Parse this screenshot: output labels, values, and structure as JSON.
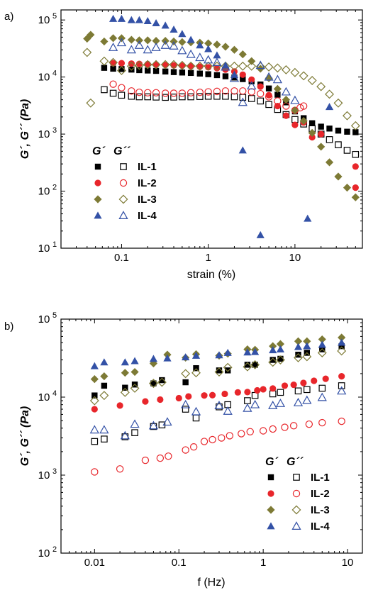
{
  "colors": {
    "IL-1": "#000000",
    "IL-2": "#e8262b",
    "IL-3": "#7d7a35",
    "IL-4": "#3351a6"
  },
  "markers": {
    "IL-1": "square",
    "IL-2": "circle",
    "IL-3": "diamond",
    "IL-4": "triangle"
  },
  "chart_data": [
    {
      "type": "scatter",
      "panel_label": "a)",
      "xlabel": "strain (%)",
      "ylabel": "G´, G´´ (Pa)",
      "xscale": "log",
      "yscale": "log",
      "xlim": [
        0.02,
        60
      ],
      "ylim": [
        10,
        150000
      ],
      "xticks": [
        {
          "v": 0.1,
          "label": "0.1"
        },
        {
          "v": 1,
          "label": "1"
        },
        {
          "v": 10,
          "label": "10"
        }
      ],
      "yticks": [
        {
          "v": 10,
          "label": "10",
          "exp": "1"
        },
        {
          "v": 100,
          "label": "10",
          "exp": "2"
        },
        {
          "v": 1000,
          "label": "10",
          "exp": "3"
        },
        {
          "v": 10000,
          "label": "10",
          "exp": "4"
        },
        {
          "v": 100000,
          "label": "10",
          "exp": "5"
        }
      ],
      "legend": {
        "position": "bottom-left",
        "header_storage": "G´",
        "header_loss": "G´´",
        "entries": [
          "IL-1",
          "IL-2",
          "IL-3",
          "IL-4"
        ]
      },
      "series": [
        {
          "name": "IL-1",
          "kind": "G´",
          "x": [
            0.063,
            0.08,
            0.1,
            0.13,
            0.16,
            0.2,
            0.25,
            0.32,
            0.4,
            0.5,
            0.63,
            0.8,
            1.0,
            1.26,
            1.58,
            2.0,
            2.5,
            3.16,
            4.0,
            5.0,
            6.3,
            7.9,
            10,
            12.6,
            15.8,
            20,
            25,
            31.6,
            40,
            50
          ],
          "y": [
            14500,
            14000,
            13800,
            13500,
            13200,
            13000,
            12800,
            12500,
            12200,
            12000,
            11800,
            11500,
            11200,
            10800,
            10300,
            9800,
            9200,
            8400,
            7400,
            6300,
            4900,
            3600,
            2500,
            1900,
            1550,
            1350,
            1250,
            1150,
            1100,
            1080
          ]
        },
        {
          "name": "IL-1",
          "kind": "G´´",
          "x": [
            0.063,
            0.08,
            0.1,
            0.13,
            0.16,
            0.2,
            0.25,
            0.32,
            0.4,
            0.5,
            0.63,
            0.8,
            1.0,
            1.26,
            1.58,
            2.0,
            2.5,
            3.16,
            4.0,
            5.0,
            6.3,
            7.9,
            10,
            12.6,
            15.8,
            20,
            25,
            31.6,
            40,
            50
          ],
          "y": [
            6000,
            5200,
            4800,
            4600,
            4500,
            4500,
            4450,
            4400,
            4450,
            4500,
            4500,
            4550,
            4600,
            4600,
            4600,
            4500,
            4400,
            4200,
            3800,
            3300,
            2700,
            2200,
            1800,
            1500,
            1250,
            1000,
            800,
            650,
            520,
            440
          ]
        },
        {
          "name": "IL-2",
          "kind": "G´",
          "x": [
            0.08,
            0.1,
            0.13,
            0.16,
            0.2,
            0.25,
            0.32,
            0.4,
            0.5,
            0.63,
            0.8,
            1.0,
            1.26,
            1.58,
            2.0,
            2.5,
            3.16,
            4.0,
            5.0,
            6.3,
            7.9,
            10,
            12.6,
            15.8,
            20,
            50,
            50
          ],
          "y": [
            17500,
            17500,
            17200,
            17000,
            16800,
            16500,
            16300,
            16000,
            15800,
            15500,
            15200,
            14800,
            14300,
            13500,
            12500,
            11000,
            9000,
            6800,
            4800,
            3100,
            2100,
            1450,
            1600,
            880,
            1000,
            270,
            115
          ]
        },
        {
          "name": "IL-2",
          "kind": "G´´",
          "x": [
            0.08,
            0.1,
            0.13,
            0.16,
            0.2,
            0.25,
            0.32,
            0.4,
            0.5,
            0.63,
            0.8,
            1.0,
            1.26,
            1.58,
            2.0,
            2.5,
            3.16,
            4.0,
            5.0,
            6.3,
            7.9,
            10,
            11.5,
            12.6
          ],
          "y": [
            7500,
            6500,
            5700,
            5400,
            5300,
            5300,
            5200,
            5200,
            5200,
            5300,
            5400,
            5500,
            5600,
            5700,
            5700,
            5700,
            5500,
            5100,
            4500,
            3800,
            3100,
            2600,
            2900,
            3100
          ]
        },
        {
          "name": "IL-3",
          "kind": "G´",
          "x": [
            0.04,
            0.044,
            0.063,
            0.08,
            0.1,
            0.13,
            0.16,
            0.2,
            0.25,
            0.32,
            0.4,
            0.5,
            0.63,
            0.8,
            1.0,
            1.26,
            1.58,
            2.0,
            2.5,
            3.16,
            4.0,
            5.0,
            6.3,
            7.9,
            10,
            12.6,
            15.8,
            20,
            25,
            31.6,
            40,
            50
          ],
          "y": [
            47000,
            55000,
            42000,
            48000,
            48000,
            45000,
            44000,
            44000,
            43000,
            43000,
            42000,
            41000,
            40500,
            40000,
            39000,
            37000,
            34000,
            30000,
            25000,
            19000,
            14000,
            9500,
            6200,
            4000,
            2600,
            1700,
            1050,
            600,
            320,
            180,
            115,
            78
          ]
        },
        {
          "name": "IL-3",
          "kind": "G´´",
          "x": [
            0.04,
            0.044,
            0.063,
            0.08,
            0.1,
            0.13,
            0.16,
            0.2,
            0.25,
            0.32,
            0.4,
            0.5,
            0.63,
            0.8,
            1.0,
            1.26,
            1.58,
            2.0,
            2.5,
            3.16,
            4.0,
            5.0,
            6.3,
            7.9,
            10,
            12.6,
            15.8,
            20,
            25,
            31.6,
            40,
            50
          ],
          "y": [
            27000,
            3500,
            19000,
            18000,
            13000,
            15500,
            16000,
            16500,
            16500,
            16500,
            16500,
            16000,
            15500,
            15500,
            15500,
            15500,
            15500,
            15500,
            15500,
            15500,
            15300,
            15000,
            14400,
            13400,
            12000,
            10500,
            8700,
            6800,
            5000,
            3500,
            2100,
            1400
          ]
        },
        {
          "name": "IL-4",
          "kind": "G´",
          "x": [
            0.08,
            0.1,
            0.13,
            0.16,
            0.2,
            0.25,
            0.32,
            0.4,
            0.5,
            0.63,
            0.8,
            1.0,
            1.26,
            1.58,
            2.0,
            2.5,
            4.0,
            14,
            25
          ],
          "y": [
            105000,
            105000,
            100000,
            100000,
            96000,
            88000,
            80000,
            68000,
            57000,
            45000,
            36000,
            31000,
            24000,
            16000,
            11000,
            520,
            17,
            33,
            3000
          ]
        },
        {
          "name": "IL-4",
          "kind": "G´´",
          "x": [
            0.08,
            0.1,
            0.13,
            0.16,
            0.2,
            0.25,
            0.32,
            0.4,
            0.5,
            0.63,
            0.8,
            1.0,
            1.26,
            1.58,
            2.0,
            2.5,
            3.16,
            4.0,
            5.0,
            6.3,
            7.9,
            10
          ],
          "y": [
            33000,
            40000,
            30000,
            36000,
            30000,
            33000,
            36000,
            35000,
            29000,
            25000,
            22000,
            20000,
            18000,
            15000,
            9500,
            3600,
            7000,
            16000,
            10000,
            9000,
            5500,
            3900
          ]
        }
      ]
    },
    {
      "type": "scatter",
      "panel_label": "b)",
      "xlabel": "f (Hz)",
      "ylabel": "G´, G´´ (Pa)",
      "xscale": "log",
      "yscale": "log",
      "xlim": [
        0.004,
        15
      ],
      "ylim": [
        100,
        100000
      ],
      "xticks": [
        {
          "v": 0.01,
          "label": "0.01"
        },
        {
          "v": 0.1,
          "label": "0.1"
        },
        {
          "v": 1,
          "label": "1"
        },
        {
          "v": 10,
          "label": "10"
        }
      ],
      "yticks": [
        {
          "v": 100,
          "label": "10",
          "exp": "2"
        },
        {
          "v": 1000,
          "label": "10",
          "exp": "3"
        },
        {
          "v": 10000,
          "label": "10",
          "exp": "4"
        },
        {
          "v": 100000,
          "label": "10",
          "exp": "5"
        }
      ],
      "legend": {
        "position": "bottom-right",
        "header_storage": "G´",
        "header_loss": "G´´",
        "entries": [
          "IL-1",
          "IL-2",
          "IL-3",
          "IL-4"
        ]
      },
      "series": [
        {
          "name": "IL-1",
          "kind": "G´",
          "x": [
            0.01,
            0.013,
            0.023,
            0.03,
            0.05,
            0.063,
            0.12,
            0.16,
            0.3,
            0.38,
            0.65,
            0.8,
            1.3,
            1.6,
            2.6,
            3.3,
            5,
            8.5
          ],
          "y": [
            10500,
            14000,
            13200,
            14500,
            15000,
            16500,
            15500,
            23500,
            22000,
            22000,
            26000,
            26000,
            30000,
            31000,
            35000,
            37000,
            41000,
            45000
          ]
        },
        {
          "name": "IL-1",
          "kind": "G´´",
          "x": [
            0.01,
            0.013,
            0.023,
            0.03,
            0.05,
            0.063,
            0.12,
            0.16,
            0.3,
            0.38,
            0.65,
            0.8,
            1.3,
            1.6,
            2.6,
            3.3,
            5,
            8.5
          ],
          "y": [
            2700,
            2900,
            3100,
            3500,
            4200,
            4400,
            7000,
            5400,
            7500,
            8000,
            9000,
            10500,
            11000,
            11500,
            12000,
            12500,
            13000,
            14000
          ]
        },
        {
          "name": "IL-2",
          "kind": "G´",
          "x": [
            0.01,
            0.02,
            0.04,
            0.06,
            0.1,
            0.13,
            0.2,
            0.25,
            0.35,
            0.5,
            0.65,
            0.85,
            1.0,
            1.3,
            1.8,
            2.3,
            3.0,
            4.0,
            5.5,
            8.5
          ],
          "y": [
            7000,
            7800,
            8800,
            9300,
            9700,
            10200,
            10500,
            10600,
            11000,
            11500,
            11600,
            12200,
            12600,
            12900,
            14000,
            14400,
            15200,
            16200,
            17200,
            18500
          ]
        },
        {
          "name": "IL-2",
          "kind": "G´´",
          "x": [
            0.01,
            0.02,
            0.04,
            0.06,
            0.075,
            0.12,
            0.15,
            0.2,
            0.25,
            0.32,
            0.4,
            0.55,
            0.7,
            1.0,
            1.3,
            1.8,
            2.3,
            3.5,
            5,
            8.5
          ],
          "y": [
            1100,
            1200,
            1550,
            1650,
            1750,
            2100,
            2300,
            2700,
            2850,
            3000,
            3200,
            3400,
            3600,
            3700,
            3900,
            4100,
            4300,
            4500,
            4700,
            4900
          ]
        },
        {
          "name": "IL-3",
          "kind": "G´",
          "x": [
            0.01,
            0.013,
            0.023,
            0.03,
            0.05,
            0.073,
            0.12,
            0.16,
            0.3,
            0.38,
            0.65,
            0.8,
            1.3,
            1.6,
            2.6,
            3.3,
            5,
            8.5
          ],
          "y": [
            17000,
            18500,
            20500,
            21000,
            27000,
            35000,
            32000,
            35500,
            34000,
            36000,
            41000,
            40500,
            45000,
            48000,
            52000,
            52000,
            55000,
            58000
          ]
        },
        {
          "name": "IL-3",
          "kind": "G´´",
          "x": [
            0.01,
            0.013,
            0.023,
            0.03,
            0.05,
            0.063,
            0.12,
            0.16,
            0.3,
            0.38,
            0.65,
            0.8,
            1.3,
            1.6,
            2.6,
            3.3,
            5,
            8.5
          ],
          "y": [
            9000,
            10500,
            11500,
            13000,
            15000,
            15500,
            20000,
            20500,
            21000,
            24000,
            24500,
            26000,
            28000,
            30000,
            32000,
            33000,
            37000,
            39000
          ]
        },
        {
          "name": "IL-4",
          "kind": "G´",
          "x": [
            0.01,
            0.013,
            0.023,
            0.03,
            0.05,
            0.073,
            0.12,
            0.16,
            0.3,
            0.38,
            0.65,
            0.8,
            1.3,
            1.6,
            2.6,
            3.3,
            5,
            8.5
          ],
          "y": [
            25000,
            28000,
            28000,
            29000,
            31000,
            31500,
            32500,
            34000,
            34500,
            37000,
            37500,
            38000,
            40000,
            41000,
            44000,
            45000,
            47000,
            50000
          ]
        },
        {
          "name": "IL-4",
          "kind": "G´´",
          "x": [
            0.01,
            0.013,
            0.023,
            0.03,
            0.05,
            0.073,
            0.12,
            0.16,
            0.3,
            0.38,
            0.65,
            0.8,
            1.3,
            1.6,
            2.6,
            3.3,
            5,
            8.5
          ],
          "y": [
            3800,
            3800,
            3200,
            4500,
            4300,
            4800,
            8000,
            6500,
            7800,
            6600,
            7200,
            8000,
            7800,
            8300,
            8500,
            9100,
            9900,
            12000
          ]
        }
      ]
    }
  ]
}
